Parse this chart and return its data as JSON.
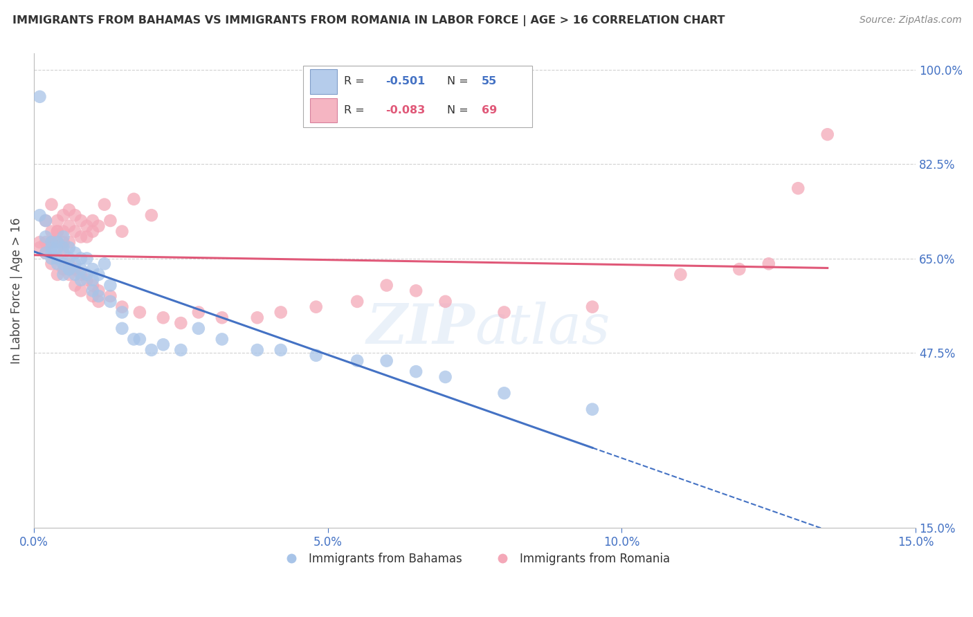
{
  "title": "IMMIGRANTS FROM BAHAMAS VS IMMIGRANTS FROM ROMANIA IN LABOR FORCE | AGE > 16 CORRELATION CHART",
  "source": "Source: ZipAtlas.com",
  "ylabel": "In Labor Force | Age > 16",
  "xlim": [
    0.0,
    0.15
  ],
  "ylim": [
    0.15,
    1.03
  ],
  "yticks": [
    1.0,
    0.825,
    0.65,
    0.475
  ],
  "ytick_labels": [
    "100.0%",
    "82.5%",
    "65.0%",
    "47.5%"
  ],
  "xticks": [
    0.0,
    0.05,
    0.1,
    0.15
  ],
  "xtick_labels": [
    "0.0%",
    "5.0%",
    "10.0%",
    "15.0%"
  ],
  "right_ytick_extra": 0.15,
  "right_ytick_extra_label": "15.0%",
  "bahamas_R": -0.501,
  "bahamas_N": 55,
  "romania_R": -0.083,
  "romania_N": 69,
  "bahamas_color": "#a8c4e8",
  "romania_color": "#f4a8b8",
  "bahamas_line_color": "#4472c4",
  "romania_line_color": "#e05878",
  "watermark": "ZIPatlas",
  "background_color": "#ffffff",
  "grid_color": "#cccccc",
  "axis_color": "#4472c4",
  "title_color": "#333333",
  "bahamas_x": [
    0.001,
    0.001,
    0.002,
    0.002,
    0.003,
    0.003,
    0.003,
    0.004,
    0.004,
    0.004,
    0.005,
    0.005,
    0.005,
    0.006,
    0.006,
    0.006,
    0.007,
    0.007,
    0.008,
    0.008,
    0.009,
    0.009,
    0.01,
    0.01,
    0.011,
    0.012,
    0.013,
    0.015,
    0.017,
    0.02,
    0.002,
    0.003,
    0.004,
    0.005,
    0.006,
    0.007,
    0.008,
    0.01,
    0.011,
    0.013,
    0.015,
    0.018,
    0.022,
    0.025,
    0.028,
    0.032,
    0.038,
    0.042,
    0.048,
    0.055,
    0.06,
    0.065,
    0.07,
    0.08,
    0.095
  ],
  "bahamas_y": [
    0.95,
    0.73,
    0.72,
    0.69,
    0.68,
    0.67,
    0.66,
    0.68,
    0.67,
    0.65,
    0.69,
    0.67,
    0.64,
    0.67,
    0.65,
    0.63,
    0.66,
    0.64,
    0.65,
    0.63,
    0.65,
    0.62,
    0.63,
    0.61,
    0.62,
    0.64,
    0.6,
    0.55,
    0.5,
    0.48,
    0.66,
    0.65,
    0.64,
    0.62,
    0.63,
    0.62,
    0.61,
    0.59,
    0.58,
    0.57,
    0.52,
    0.5,
    0.49,
    0.48,
    0.52,
    0.5,
    0.48,
    0.48,
    0.47,
    0.46,
    0.46,
    0.44,
    0.43,
    0.4,
    0.37
  ],
  "romania_x": [
    0.001,
    0.001,
    0.002,
    0.002,
    0.003,
    0.003,
    0.003,
    0.004,
    0.004,
    0.004,
    0.005,
    0.005,
    0.005,
    0.006,
    0.006,
    0.006,
    0.007,
    0.007,
    0.008,
    0.008,
    0.009,
    0.009,
    0.01,
    0.01,
    0.011,
    0.012,
    0.013,
    0.015,
    0.017,
    0.02,
    0.002,
    0.003,
    0.004,
    0.005,
    0.006,
    0.007,
    0.008,
    0.01,
    0.011,
    0.013,
    0.015,
    0.018,
    0.022,
    0.025,
    0.028,
    0.032,
    0.038,
    0.042,
    0.048,
    0.055,
    0.06,
    0.065,
    0.07,
    0.08,
    0.095,
    0.11,
    0.12,
    0.125,
    0.13,
    0.135,
    0.003,
    0.004,
    0.005,
    0.006,
    0.007,
    0.008,
    0.009,
    0.01,
    0.011
  ],
  "romania_y": [
    0.68,
    0.67,
    0.72,
    0.68,
    0.75,
    0.7,
    0.68,
    0.72,
    0.7,
    0.68,
    0.73,
    0.7,
    0.68,
    0.74,
    0.71,
    0.68,
    0.73,
    0.7,
    0.72,
    0.69,
    0.71,
    0.69,
    0.72,
    0.7,
    0.71,
    0.75,
    0.72,
    0.7,
    0.76,
    0.73,
    0.66,
    0.64,
    0.62,
    0.63,
    0.62,
    0.6,
    0.59,
    0.58,
    0.57,
    0.58,
    0.56,
    0.55,
    0.54,
    0.53,
    0.55,
    0.54,
    0.54,
    0.55,
    0.56,
    0.57,
    0.6,
    0.59,
    0.57,
    0.55,
    0.56,
    0.62,
    0.63,
    0.64,
    0.78,
    0.88,
    0.68,
    0.7,
    0.66,
    0.64,
    0.63,
    0.62,
    0.61,
    0.6,
    0.59
  ]
}
